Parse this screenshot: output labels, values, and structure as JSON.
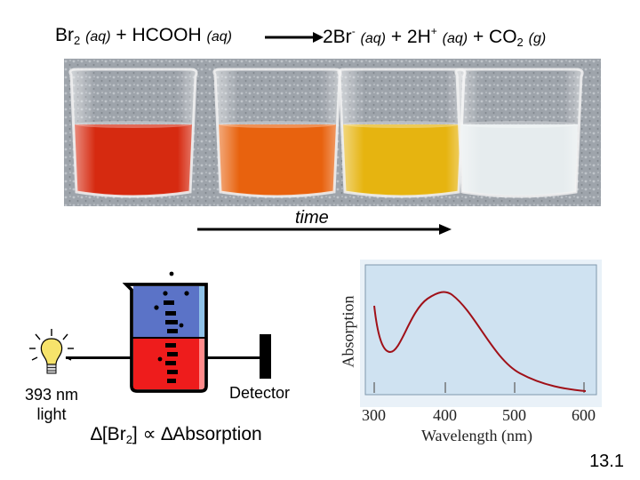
{
  "equation": {
    "lhs_br": "Br",
    "lhs_br_sub": "2",
    "lhs_state1": "(aq)",
    "plus1": "+ HCOOH",
    "lhs_state2": "(aq)",
    "rhs_coef": "2Br",
    "rhs_charge": "-",
    "rhs_state1": "(aq)",
    "rhs_plus_h": "+ 2H",
    "rhs_h_charge": "+",
    "rhs_state2": "(aq)",
    "rhs_co": "+ CO",
    "rhs_co_sub": "2",
    "rhs_state3": "(g)"
  },
  "photo": {
    "beaker_colors": [
      "#d62a10",
      "#e8620e",
      "#e6b410",
      "#e6ecee"
    ]
  },
  "time_label": "time",
  "light": {
    "label_line1": "393 nm",
    "label_line2": "light"
  },
  "detector_label": "Detector",
  "relation": {
    "prefix": "∆[Br",
    "sub": "2",
    "suffix": "] ∝ ∆Absorption"
  },
  "spectrum": {
    "ylabel": "Absorption",
    "xlabel": "Wavelength (nm)",
    "ticks": [
      "300",
      "400",
      "500",
      "600"
    ]
  },
  "page_number": "13.1",
  "colors": {
    "blue_liquid": "#5b73c7",
    "red_liquid": "#ee1c1c",
    "curve": "#a01018",
    "plot_bg": "#cfe2f1"
  }
}
